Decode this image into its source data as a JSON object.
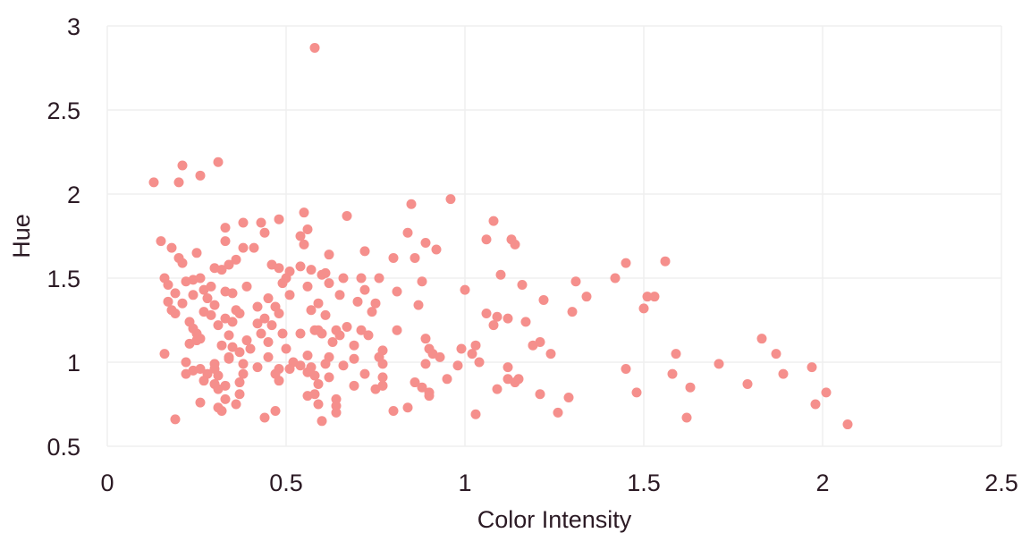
{
  "chart_data": {
    "type": "scatter",
    "xlabel": "Color Intensity",
    "ylabel": "Hue",
    "xlim": [
      0,
      2.5
    ],
    "ylim": [
      0.5,
      3
    ],
    "xticks": [
      "0",
      "0.5",
      "1",
      "1.5",
      "2",
      "2.5"
    ],
    "yticks": [
      "0.5",
      "1",
      "1.5",
      "2",
      "2.5",
      "3"
    ],
    "grid": true,
    "color": "#f58f8c",
    "points": [
      [
        0.58,
        2.87
      ],
      [
        0.31,
        2.19
      ],
      [
        0.21,
        2.17
      ],
      [
        0.26,
        2.11
      ],
      [
        0.13,
        2.07
      ],
      [
        0.2,
        2.07
      ],
      [
        0.96,
        1.97
      ],
      [
        0.85,
        1.94
      ],
      [
        0.55,
        1.89
      ],
      [
        0.67,
        1.87
      ],
      [
        0.48,
        1.85
      ],
      [
        0.38,
        1.83
      ],
      [
        0.43,
        1.83
      ],
      [
        1.08,
        1.84
      ],
      [
        0.33,
        1.8
      ],
      [
        0.44,
        1.77
      ],
      [
        0.54,
        1.75
      ],
      [
        0.56,
        1.79
      ],
      [
        0.84,
        1.77
      ],
      [
        0.15,
        1.72
      ],
      [
        0.33,
        1.72
      ],
      [
        0.38,
        1.68
      ],
      [
        0.41,
        1.68
      ],
      [
        0.55,
        1.7
      ],
      [
        0.89,
        1.71
      ],
      [
        0.92,
        1.67
      ],
      [
        1.06,
        1.73
      ],
      [
        1.13,
        1.73
      ],
      [
        1.14,
        1.7
      ],
      [
        0.18,
        1.68
      ],
      [
        0.25,
        1.65
      ],
      [
        0.62,
        1.64
      ],
      [
        0.72,
        1.66
      ],
      [
        0.86,
        1.62
      ],
      [
        0.2,
        1.62
      ],
      [
        0.21,
        1.59
      ],
      [
        0.3,
        1.56
      ],
      [
        0.32,
        1.55
      ],
      [
        0.34,
        1.58
      ],
      [
        0.36,
        1.61
      ],
      [
        0.46,
        1.58
      ],
      [
        0.48,
        1.56
      ],
      [
        0.51,
        1.54
      ],
      [
        0.54,
        1.57
      ],
      [
        0.57,
        1.55
      ],
      [
        0.6,
        1.52
      ],
      [
        0.8,
        1.62
      ],
      [
        0.66,
        1.5
      ],
      [
        1.45,
        1.59
      ],
      [
        1.56,
        1.6
      ],
      [
        0.16,
        1.5
      ],
      [
        0.24,
        1.49
      ],
      [
        0.26,
        1.5
      ],
      [
        0.5,
        1.5
      ],
      [
        0.61,
        1.53
      ],
      [
        0.71,
        1.5
      ],
      [
        0.76,
        1.5
      ],
      [
        0.88,
        1.48
      ],
      [
        1.1,
        1.52
      ],
      [
        1.42,
        1.5
      ],
      [
        0.17,
        1.46
      ],
      [
        0.22,
        1.48
      ],
      [
        0.27,
        1.43
      ],
      [
        0.29,
        1.45
      ],
      [
        0.33,
        1.42
      ],
      [
        0.39,
        1.45
      ],
      [
        0.49,
        1.47
      ],
      [
        0.56,
        1.45
      ],
      [
        0.62,
        1.47
      ],
      [
        0.72,
        1.43
      ],
      [
        0.81,
        1.42
      ],
      [
        1.0,
        1.43
      ],
      [
        1.16,
        1.46
      ],
      [
        1.31,
        1.48
      ],
      [
        0.19,
        1.41
      ],
      [
        0.24,
        1.4
      ],
      [
        0.28,
        1.38
      ],
      [
        0.35,
        1.41
      ],
      [
        0.45,
        1.38
      ],
      [
        0.51,
        1.4
      ],
      [
        0.59,
        1.35
      ],
      [
        0.65,
        1.4
      ],
      [
        0.7,
        1.36
      ],
      [
        1.22,
        1.37
      ],
      [
        1.34,
        1.39
      ],
      [
        1.51,
        1.39
      ],
      [
        1.53,
        1.39
      ],
      [
        0.17,
        1.36
      ],
      [
        0.21,
        1.35
      ],
      [
        0.3,
        1.34
      ],
      [
        0.36,
        1.31
      ],
      [
        0.42,
        1.33
      ],
      [
        0.47,
        1.33
      ],
      [
        0.57,
        1.31
      ],
      [
        0.75,
        1.35
      ],
      [
        0.87,
        1.34
      ],
      [
        1.5,
        1.32
      ],
      [
        0.18,
        1.31
      ],
      [
        0.19,
        1.29
      ],
      [
        0.27,
        1.3
      ],
      [
        0.29,
        1.28
      ],
      [
        0.33,
        1.26
      ],
      [
        0.37,
        1.29
      ],
      [
        0.44,
        1.26
      ],
      [
        0.48,
        1.29
      ],
      [
        0.61,
        1.28
      ],
      [
        0.74,
        1.3
      ],
      [
        1.06,
        1.29
      ],
      [
        1.09,
        1.27
      ],
      [
        1.12,
        1.26
      ],
      [
        1.3,
        1.3
      ],
      [
        0.23,
        1.24
      ],
      [
        0.24,
        1.2
      ],
      [
        0.31,
        1.22
      ],
      [
        0.35,
        1.24
      ],
      [
        0.42,
        1.23
      ],
      [
        0.46,
        1.22
      ],
      [
        0.58,
        1.19
      ],
      [
        0.59,
        1.19
      ],
      [
        0.64,
        1.19
      ],
      [
        0.67,
        1.21
      ],
      [
        0.71,
        1.19
      ],
      [
        0.73,
        1.16
      ],
      [
        0.81,
        1.19
      ],
      [
        1.08,
        1.22
      ],
      [
        1.17,
        1.24
      ],
      [
        0.25,
        1.17
      ],
      [
        0.26,
        1.14
      ],
      [
        0.34,
        1.16
      ],
      [
        0.39,
        1.13
      ],
      [
        0.43,
        1.17
      ],
      [
        0.49,
        1.17
      ],
      [
        0.54,
        1.17
      ],
      [
        0.6,
        1.17
      ],
      [
        0.65,
        1.16
      ],
      [
        0.89,
        1.14
      ],
      [
        0.23,
        1.11
      ],
      [
        0.25,
        1.13
      ],
      [
        0.32,
        1.1
      ],
      [
        0.35,
        1.09
      ],
      [
        0.4,
        1.08
      ],
      [
        0.45,
        1.12
      ],
      [
        0.5,
        1.08
      ],
      [
        0.63,
        1.12
      ],
      [
        0.69,
        1.1
      ],
      [
        0.77,
        1.07
      ],
      [
        0.9,
        1.08
      ],
      [
        0.99,
        1.08
      ],
      [
        1.03,
        1.1
      ],
      [
        1.19,
        1.1
      ],
      [
        1.21,
        1.12
      ],
      [
        0.16,
        1.05
      ],
      [
        0.34,
        1.03
      ],
      [
        0.37,
        1.06
      ],
      [
        0.45,
        1.03
      ],
      [
        0.56,
        1.04
      ],
      [
        0.62,
        1.03
      ],
      [
        0.76,
        1.03
      ],
      [
        0.91,
        1.05
      ],
      [
        0.93,
        1.03
      ],
      [
        1.02,
        1.05
      ],
      [
        1.24,
        1.05
      ],
      [
        1.59,
        1.05
      ],
      [
        1.83,
        1.14
      ],
      [
        1.87,
        1.05
      ],
      [
        0.22,
        1.0
      ],
      [
        0.26,
        0.96
      ],
      [
        0.3,
        0.99
      ],
      [
        0.34,
        1.02
      ],
      [
        0.38,
        0.99
      ],
      [
        0.42,
        0.97
      ],
      [
        0.48,
        0.96
      ],
      [
        0.52,
        1.0
      ],
      [
        0.54,
        0.98
      ],
      [
        0.57,
        0.97
      ],
      [
        0.61,
        0.99
      ],
      [
        0.66,
        0.98
      ],
      [
        0.69,
        1.02
      ],
      [
        0.77,
        0.99
      ],
      [
        0.89,
        0.99
      ],
      [
        0.98,
        0.98
      ],
      [
        1.04,
        1.0
      ],
      [
        1.12,
        0.97
      ],
      [
        1.45,
        0.96
      ],
      [
        1.58,
        0.93
      ],
      [
        1.71,
        0.99
      ],
      [
        1.97,
        0.97
      ],
      [
        0.22,
        0.93
      ],
      [
        0.24,
        0.95
      ],
      [
        0.28,
        0.93
      ],
      [
        0.3,
        0.96
      ],
      [
        0.31,
        0.92
      ],
      [
        0.38,
        0.93
      ],
      [
        0.47,
        0.93
      ],
      [
        0.51,
        0.96
      ],
      [
        0.56,
        0.94
      ],
      [
        0.58,
        0.92
      ],
      [
        0.62,
        0.91
      ],
      [
        0.72,
        0.93
      ],
      [
        0.77,
        0.91
      ],
      [
        0.86,
        0.88
      ],
      [
        0.95,
        0.9
      ],
      [
        1.12,
        0.9
      ],
      [
        1.14,
        0.88
      ],
      [
        1.15,
        0.9
      ],
      [
        1.89,
        0.93
      ],
      [
        0.27,
        0.89
      ],
      [
        0.3,
        0.87
      ],
      [
        0.33,
        0.86
      ],
      [
        0.37,
        0.88
      ],
      [
        0.48,
        0.89
      ],
      [
        0.59,
        0.87
      ],
      [
        0.69,
        0.86
      ],
      [
        0.77,
        0.86
      ],
      [
        0.88,
        0.85
      ],
      [
        0.9,
        0.82
      ],
      [
        1.09,
        0.84
      ],
      [
        1.63,
        0.85
      ],
      [
        1.79,
        0.87
      ],
      [
        0.31,
        0.84
      ],
      [
        0.37,
        0.81
      ],
      [
        0.56,
        0.8
      ],
      [
        0.58,
        0.81
      ],
      [
        0.64,
        0.78
      ],
      [
        0.75,
        0.84
      ],
      [
        0.9,
        0.8
      ],
      [
        1.21,
        0.81
      ],
      [
        1.29,
        0.79
      ],
      [
        1.48,
        0.82
      ],
      [
        2.01,
        0.82
      ],
      [
        0.26,
        0.76
      ],
      [
        0.33,
        0.78
      ],
      [
        0.36,
        0.75
      ],
      [
        0.59,
        0.75
      ],
      [
        0.64,
        0.74
      ],
      [
        1.98,
        0.75
      ],
      [
        0.31,
        0.73
      ],
      [
        0.32,
        0.71
      ],
      [
        0.47,
        0.71
      ],
      [
        0.64,
        0.7
      ],
      [
        0.8,
        0.71
      ],
      [
        0.84,
        0.73
      ],
      [
        1.03,
        0.69
      ],
      [
        1.26,
        0.7
      ],
      [
        0.19,
        0.66
      ],
      [
        0.44,
        0.67
      ],
      [
        0.6,
        0.65
      ],
      [
        1.62,
        0.67
      ],
      [
        2.07,
        0.63
      ]
    ]
  }
}
